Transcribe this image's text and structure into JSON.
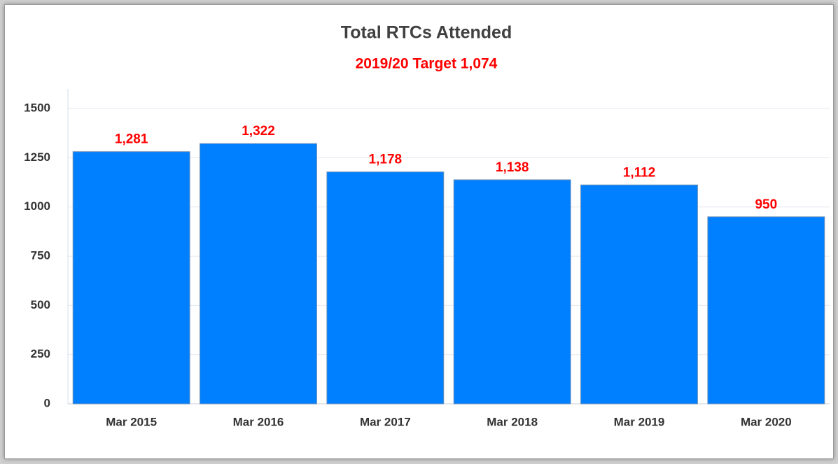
{
  "chart_data": {
    "type": "bar",
    "title": "Total RTCs Attended",
    "subtitle": "2019/20 Target 1,074",
    "categories": [
      "Mar 2015",
      "Mar 2016",
      "Mar 2017",
      "Mar 2018",
      "Mar 2019",
      "Mar 2020"
    ],
    "values": [
      1281,
      1322,
      1178,
      1138,
      1112,
      950
    ],
    "value_labels": [
      "1,281",
      "1,322",
      "1,178",
      "1,138",
      "1,112",
      "950"
    ],
    "color": "#0080ff",
    "label_color": "#ff0000",
    "ylim": [
      0,
      1600
    ],
    "yticks": [
      0,
      250,
      500,
      750,
      1000,
      1250,
      1500
    ],
    "grid": true
  }
}
